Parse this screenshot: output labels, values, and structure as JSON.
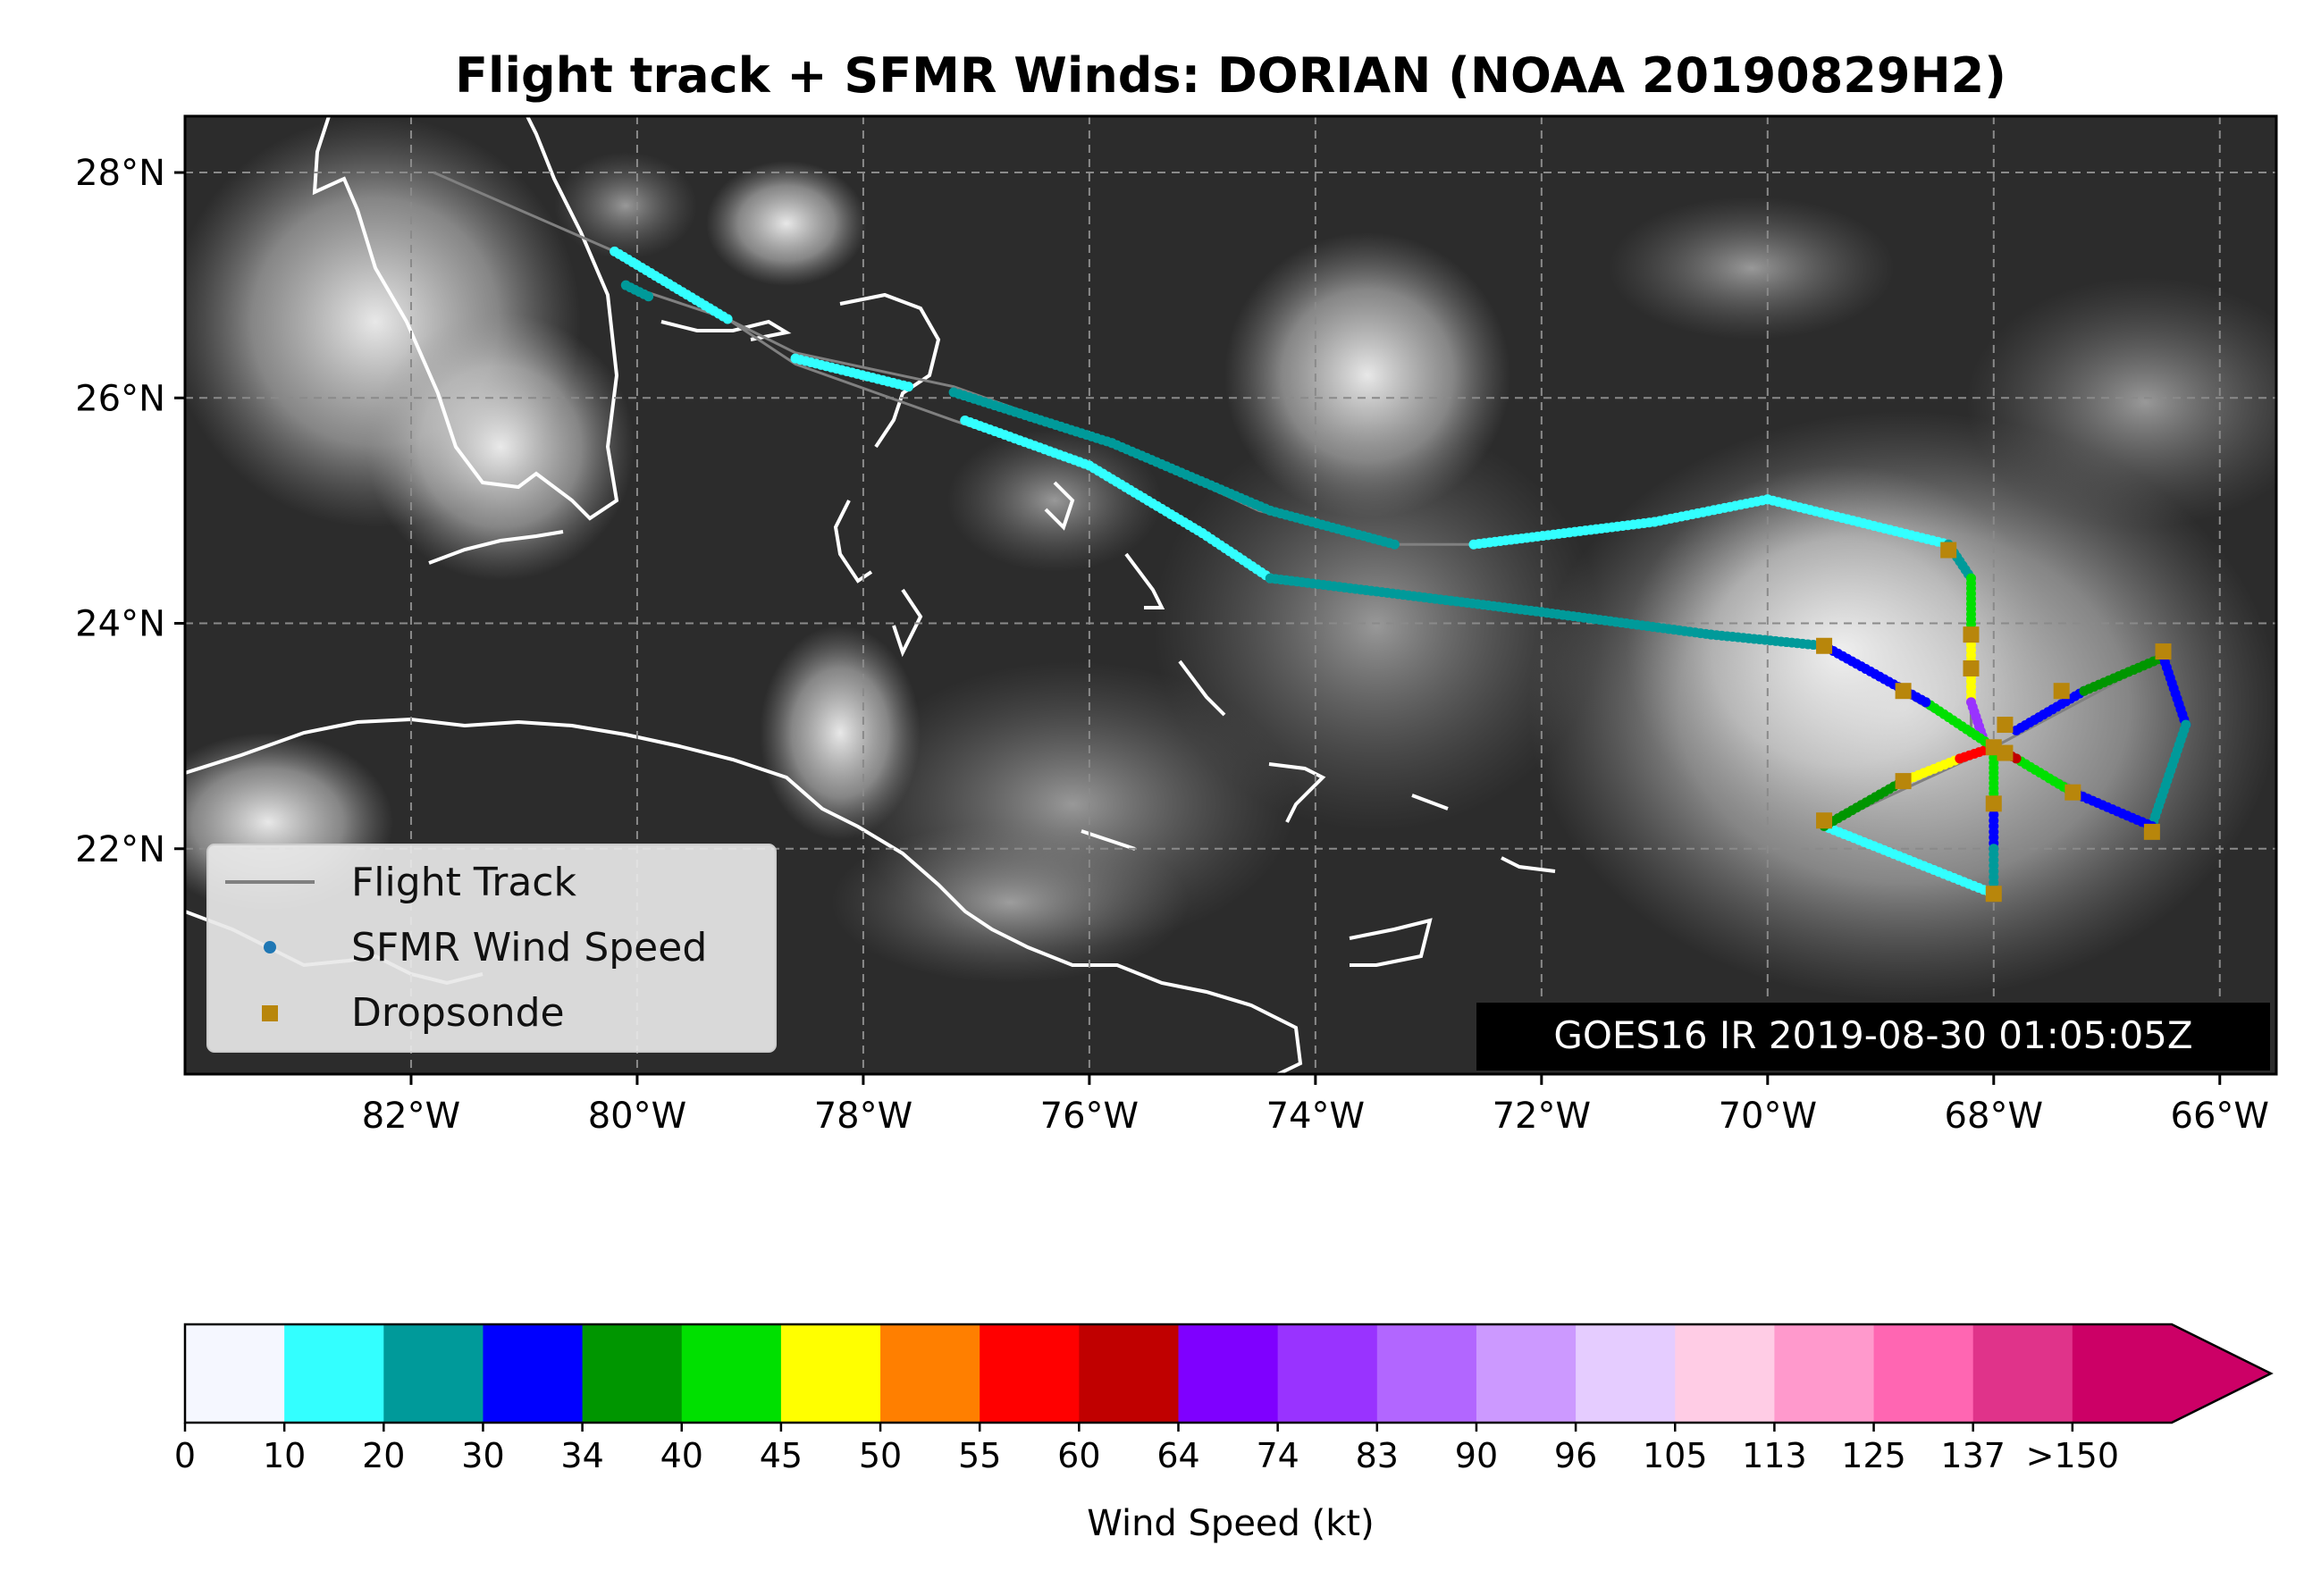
{
  "title": "Flight track + SFMR Winds: DORIAN (NOAA 20190829H2)",
  "map": {
    "lon_range": [
      -84.0,
      -65.5
    ],
    "lat_range": [
      20.0,
      28.5
    ],
    "lon_ticks": [
      {
        "value": -82,
        "label": "82°W"
      },
      {
        "value": -80,
        "label": "80°W"
      },
      {
        "value": -78,
        "label": "78°W"
      },
      {
        "value": -76,
        "label": "76°W"
      },
      {
        "value": -74,
        "label": "74°W"
      },
      {
        "value": -72,
        "label": "72°W"
      },
      {
        "value": -70,
        "label": "70°W"
      },
      {
        "value": -68,
        "label": "68°W"
      },
      {
        "value": -66,
        "label": "66°W"
      }
    ],
    "lat_ticks": [
      {
        "value": 28,
        "label": "28°N"
      },
      {
        "value": 26,
        "label": "26°N"
      },
      {
        "value": 24,
        "label": "24°N"
      },
      {
        "value": 22,
        "label": "22°N"
      }
    ],
    "grid": true,
    "background": "GOES16 IR satellite imagery (grayscale)"
  },
  "legend": {
    "placement": "lower-left",
    "items": [
      {
        "label": "Flight Track",
        "symbol": "line",
        "color": "#808080"
      },
      {
        "label": "SFMR Wind Speed",
        "symbol": "dot",
        "color": "#1f77b4"
      },
      {
        "label": "Dropsonde",
        "symbol": "square",
        "color": "#b8860b"
      }
    ]
  },
  "image_stamp": "GOES16 IR 2019-08-30 01:05:05Z",
  "colorbar": {
    "label": "Wind Speed (kt)",
    "ticks": [
      "0",
      "10",
      "20",
      "30",
      "34",
      "40",
      "45",
      "50",
      "55",
      "60",
      "64",
      "74",
      "83",
      "90",
      "96",
      "105",
      "113",
      "125",
      "137",
      ">150"
    ],
    "colors": [
      "#f5f7ff",
      "#33ffff",
      "#009a9a",
      "#0000ff",
      "#009600",
      "#00e000",
      "#ffff00",
      "#ff7f00",
      "#ff0000",
      "#c00000",
      "#7f00ff",
      "#9933ff",
      "#b266ff",
      "#cc99ff",
      "#e5ccff",
      "#ffcce5",
      "#ff99cc",
      "#ff66b2",
      "#e0338a",
      "#cc0066"
    ]
  },
  "chart_data": {
    "type": "scatter",
    "flight_track": [
      [
        -81.8,
        28.0
      ],
      [
        -80.2,
        27.3
      ],
      [
        -79.2,
        26.7
      ],
      [
        -78.6,
        26.4
      ],
      [
        -77.2,
        26.1
      ],
      [
        -75.8,
        25.6
      ],
      [
        -74.5,
        25.0
      ],
      [
        -73.3,
        24.7
      ],
      [
        -72.6,
        24.7
      ],
      [
        -71.0,
        24.9
      ],
      [
        -70.0,
        25.1
      ],
      [
        -69.2,
        24.9
      ],
      [
        -68.4,
        24.7
      ],
      [
        -68.2,
        24.4
      ],
      [
        -68.2,
        23.0
      ],
      [
        -68.0,
        22.9
      ],
      [
        -68.0,
        22.4
      ],
      [
        -68.0,
        21.6
      ],
      [
        -69.5,
        22.2
      ],
      [
        -68.0,
        22.9
      ],
      [
        -66.5,
        23.7
      ],
      [
        -66.3,
        23.1
      ],
      [
        -66.6,
        22.2
      ],
      [
        -68.0,
        22.9
      ],
      [
        -69.5,
        23.8
      ],
      [
        -70.5,
        23.9
      ],
      [
        -72.0,
        24.1
      ],
      [
        -74.4,
        24.4
      ],
      [
        -76.0,
        25.4
      ],
      [
        -77.2,
        25.8
      ],
      [
        -78.6,
        26.3
      ],
      [
        -79.2,
        26.7
      ],
      [
        -80.1,
        27.0
      ]
    ],
    "sfmr_segments": [
      {
        "pts": [
          [
            -80.2,
            27.3
          ],
          [
            -79.2,
            26.7
          ]
        ],
        "kt": 15
      },
      {
        "pts": [
          [
            -80.1,
            27.0
          ],
          [
            -79.9,
            26.9
          ]
        ],
        "kt": 22
      },
      {
        "pts": [
          [
            -78.6,
            26.35
          ],
          [
            -77.6,
            26.1
          ]
        ],
        "kt": 14
      },
      {
        "pts": [
          [
            -77.2,
            26.05
          ],
          [
            -75.8,
            25.6
          ],
          [
            -74.4,
            25.0
          ],
          [
            -73.3,
            24.7
          ]
        ],
        "kt": 22
      },
      {
        "pts": [
          [
            -77.1,
            25.8
          ],
          [
            -76.0,
            25.4
          ],
          [
            -75.0,
            24.8
          ],
          [
            -74.4,
            24.4
          ]
        ],
        "kt": 15
      },
      {
        "pts": [
          [
            -74.4,
            24.4
          ],
          [
            -72.0,
            24.1
          ],
          [
            -70.5,
            23.9
          ],
          [
            -69.5,
            23.8
          ]
        ],
        "kt": 21
      },
      {
        "pts": [
          [
            -72.6,
            24.7
          ],
          [
            -71.0,
            24.9
          ],
          [
            -70.0,
            25.1
          ],
          [
            -69.2,
            24.9
          ],
          [
            -68.4,
            24.7
          ]
        ],
        "kt": 14
      },
      {
        "pts": [
          [
            -68.4,
            24.7
          ],
          [
            -68.2,
            24.4
          ]
        ],
        "kt": 22
      },
      {
        "pts": [
          [
            -68.2,
            24.4
          ],
          [
            -68.2,
            23.9
          ]
        ],
        "kt": 40
      },
      {
        "pts": [
          [
            -68.2,
            23.9
          ],
          [
            -68.2,
            23.3
          ]
        ],
        "kt": 47
      },
      {
        "pts": [
          [
            -68.2,
            23.3
          ],
          [
            -68.1,
            23.0
          ]
        ],
        "kt": 80
      },
      {
        "pts": [
          [
            -68.0,
            22.9
          ],
          [
            -68.0,
            22.4
          ]
        ],
        "kt": 42
      },
      {
        "pts": [
          [
            -68.0,
            22.4
          ],
          [
            -68.0,
            22.0
          ]
        ],
        "kt": 32
      },
      {
        "pts": [
          [
            -68.0,
            22.0
          ],
          [
            -68.0,
            21.6
          ]
        ],
        "kt": 22
      },
      {
        "pts": [
          [
            -68.0,
            21.6
          ],
          [
            -69.5,
            22.2
          ]
        ],
        "kt": 15
      },
      {
        "pts": [
          [
            -69.5,
            22.2
          ],
          [
            -68.8,
            22.6
          ]
        ],
        "kt": 36
      },
      {
        "pts": [
          [
            -68.8,
            22.6
          ],
          [
            -68.3,
            22.8
          ]
        ],
        "kt": 47
      },
      {
        "pts": [
          [
            -68.3,
            22.8
          ],
          [
            -68.0,
            22.9
          ]
        ],
        "kt": 58
      },
      {
        "pts": [
          [
            -67.8,
            23.05
          ],
          [
            -67.2,
            23.4
          ]
        ],
        "kt": 32
      },
      {
        "pts": [
          [
            -67.2,
            23.4
          ],
          [
            -66.5,
            23.7
          ]
        ],
        "kt": 38
      },
      {
        "pts": [
          [
            -66.5,
            23.7
          ],
          [
            -66.3,
            23.1
          ]
        ],
        "kt": 31
      },
      {
        "pts": [
          [
            -66.3,
            23.1
          ],
          [
            -66.6,
            22.2
          ]
        ],
        "kt": 29
      },
      {
        "pts": [
          [
            -66.6,
            22.2
          ],
          [
            -67.3,
            22.5
          ]
        ],
        "kt": 32
      },
      {
        "pts": [
          [
            -67.3,
            22.5
          ],
          [
            -67.8,
            22.8
          ]
        ],
        "kt": 42
      },
      {
        "pts": [
          [
            -67.8,
            22.8
          ],
          [
            -68.0,
            22.9
          ]
        ],
        "kt": 62
      },
      {
        "pts": [
          [
            -68.0,
            22.9
          ],
          [
            -68.6,
            23.3
          ]
        ],
        "kt": 42
      },
      {
        "pts": [
          [
            -68.6,
            23.3
          ],
          [
            -69.5,
            23.8
          ]
        ],
        "kt": 31
      }
    ],
    "dropsondes": [
      [
        -68.4,
        24.65
      ],
      [
        -68.2,
        23.9
      ],
      [
        -68.2,
        23.6
      ],
      [
        -68.0,
        22.9
      ],
      [
        -67.9,
        23.1
      ],
      [
        -67.9,
        22.85
      ],
      [
        -68.0,
        22.4
      ],
      [
        -68.0,
        21.6
      ],
      [
        -69.5,
        22.25
      ],
      [
        -68.8,
        22.6
      ],
      [
        -68.8,
        23.4
      ],
      [
        -69.5,
        23.8
      ],
      [
        -67.4,
        23.4
      ],
      [
        -66.5,
        23.75
      ],
      [
        -67.3,
        22.5
      ],
      [
        -66.6,
        22.15
      ]
    ]
  }
}
